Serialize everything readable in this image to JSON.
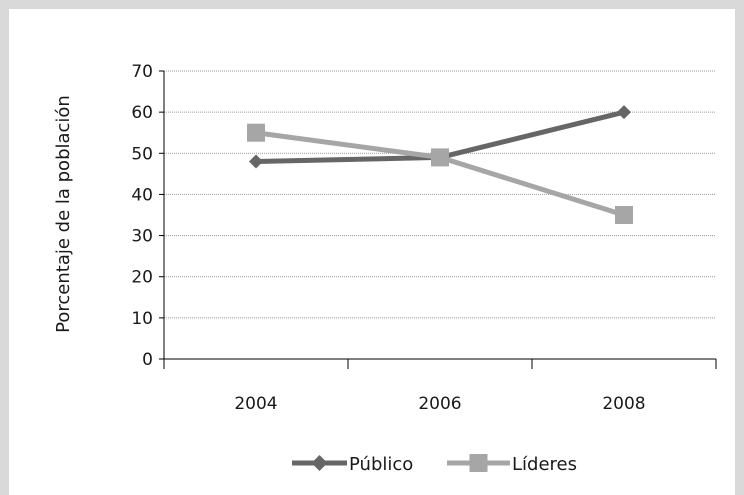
{
  "chart_data": {
    "type": "line",
    "categories": [
      "2004",
      "2006",
      "2008"
    ],
    "ylabel": "Porcentaje de la población",
    "ylim": [
      0,
      70
    ],
    "yticks": [
      0,
      10,
      20,
      30,
      40,
      50,
      60,
      70
    ],
    "grid": true,
    "legend_position": "bottom",
    "series": [
      {
        "name": "Público",
        "values": [
          48,
          49,
          60
        ],
        "color": "#666666",
        "marker": "diamond"
      },
      {
        "name": "Líderes",
        "values": [
          55,
          49,
          35
        ],
        "color": "#a6a6a6",
        "marker": "square"
      }
    ]
  }
}
